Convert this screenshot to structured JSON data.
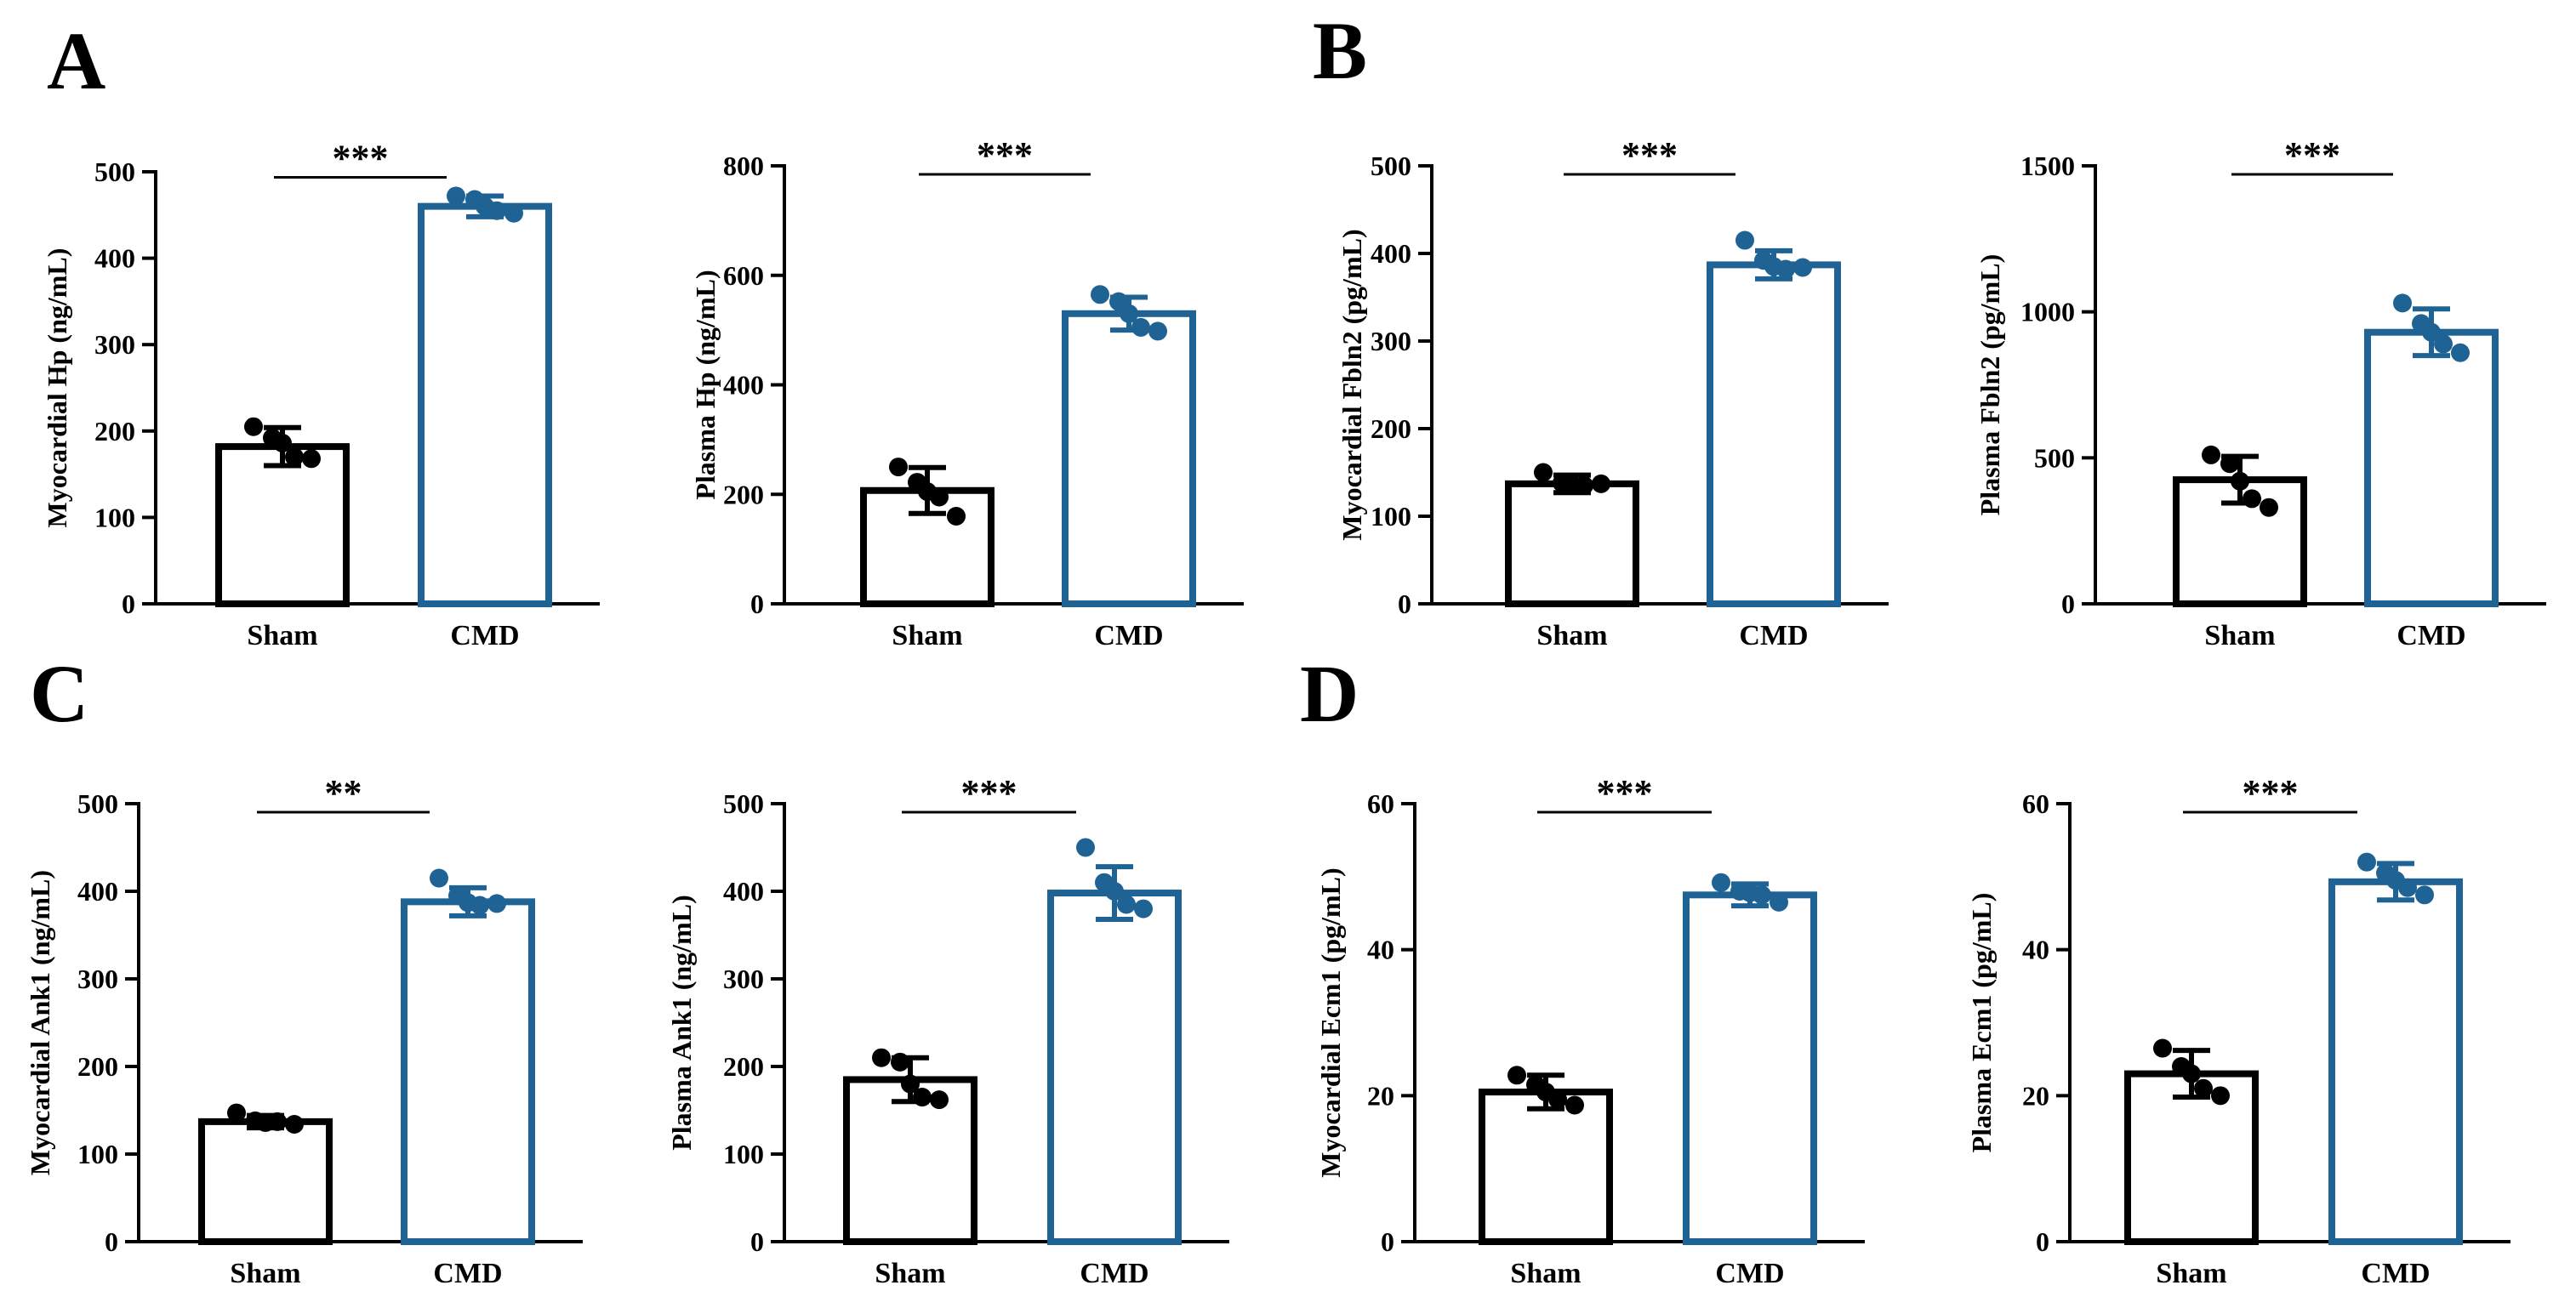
{
  "colors": {
    "sham": "#000000",
    "cmd": "#1f6394"
  },
  "panels": [
    {
      "letter": "A"
    },
    {
      "letter": "B"
    },
    {
      "letter": "C"
    },
    {
      "letter": "D"
    }
  ],
  "chart_data": [
    {
      "type": "bar",
      "panel": "A",
      "ylabel": "Myocardial Hp (ng/mL)",
      "categories": [
        "Sham",
        "CMD"
      ],
      "values": [
        182,
        460
      ],
      "errors": [
        22,
        12
      ],
      "points": [
        [
          205,
          192,
          186,
          170,
          168
        ],
        [
          472,
          468,
          460,
          455,
          452
        ]
      ],
      "ylim": [
        0,
        500
      ],
      "yticks": [
        0,
        100,
        200,
        300,
        400,
        500
      ],
      "significance": "***"
    },
    {
      "type": "bar",
      "panel": "A",
      "ylabel": "Plasma Hp (ng/mL)",
      "categories": [
        "Sham",
        "CMD"
      ],
      "values": [
        207,
        530
      ],
      "errors": [
        42,
        30
      ],
      "points": [
        [
          250,
          222,
          205,
          195,
          160
        ],
        [
          565,
          552,
          530,
          505,
          498
        ]
      ],
      "ylim": [
        0,
        800
      ],
      "yticks": [
        0,
        200,
        400,
        600,
        800
      ],
      "significance": "***"
    },
    {
      "type": "bar",
      "panel": "B",
      "ylabel": "Myocardial Fbln2 (pg/mL)",
      "categories": [
        "Sham",
        "CMD"
      ],
      "values": [
        137,
        387
      ],
      "errors": [
        10,
        16
      ],
      "points": [
        [
          150,
          138,
          136,
          135,
          137
        ],
        [
          415,
          392,
          385,
          382,
          384
        ]
      ],
      "ylim": [
        0,
        500
      ],
      "yticks": [
        0,
        100,
        200,
        300,
        400,
        500
      ],
      "significance": "***"
    },
    {
      "type": "bar",
      "panel": "B",
      "ylabel": "Plasma Fbln2 (pg/mL)",
      "categories": [
        "Sham",
        "CMD"
      ],
      "values": [
        425,
        930
      ],
      "errors": [
        80,
        80
      ],
      "points": [
        [
          510,
          480,
          420,
          360,
          330
        ],
        [
          1030,
          960,
          930,
          890,
          860
        ]
      ],
      "ylim": [
        0,
        1500
      ],
      "yticks": [
        0,
        500,
        1000,
        1500
      ],
      "significance": "***"
    },
    {
      "type": "bar",
      "panel": "C",
      "ylabel": "Myocardial Ank1 (ng/mL)",
      "categories": [
        "Sham",
        "CMD"
      ],
      "values": [
        137,
        388
      ],
      "errors": [
        7,
        16
      ],
      "points": [
        [
          147,
          138,
          136,
          137,
          134
        ],
        [
          415,
          395,
          387,
          384,
          386
        ]
      ],
      "ylim": [
        0,
        500
      ],
      "yticks": [
        0,
        100,
        200,
        300,
        400,
        500
      ],
      "significance": "**"
    },
    {
      "type": "bar",
      "panel": "C",
      "ylabel": "Plasma Ank1 (ng/mL)",
      "categories": [
        "Sham",
        "CMD"
      ],
      "values": [
        185,
        398
      ],
      "errors": [
        25,
        30
      ],
      "points": [
        [
          210,
          205,
          180,
          165,
          162
        ],
        [
          450,
          410,
          400,
          385,
          380
        ]
      ],
      "ylim": [
        0,
        500
      ],
      "yticks": [
        0,
        100,
        200,
        300,
        400,
        500
      ],
      "significance": "***"
    },
    {
      "type": "bar",
      "panel": "D",
      "ylabel": "Myocardial Ecm1 (pg/mL)",
      "categories": [
        "Sham",
        "CMD"
      ],
      "values": [
        20.5,
        47.5
      ],
      "errors": [
        2.3,
        1.5
      ],
      "points": [
        [
          22.8,
          21.5,
          20.5,
          19.5,
          18.7
        ],
        [
          49.2,
          48.0,
          47.8,
          47.5,
          46.5
        ]
      ],
      "ylim": [
        0,
        60
      ],
      "yticks": [
        0,
        20,
        40,
        60
      ],
      "significance": "***"
    },
    {
      "type": "bar",
      "panel": "D",
      "ylabel": "Plasma  Ecm1 (pg/mL)",
      "categories": [
        "Sham",
        "CMD"
      ],
      "values": [
        23,
        49.3
      ],
      "errors": [
        3.2,
        2.5
      ],
      "points": [
        [
          26.5,
          24.0,
          23.0,
          21.0,
          20.0
        ],
        [
          52.0,
          50.5,
          49.5,
          48.5,
          47.5
        ]
      ],
      "ylim": [
        0,
        60
      ],
      "yticks": [
        0,
        20,
        40,
        60
      ],
      "significance": "***"
    }
  ]
}
